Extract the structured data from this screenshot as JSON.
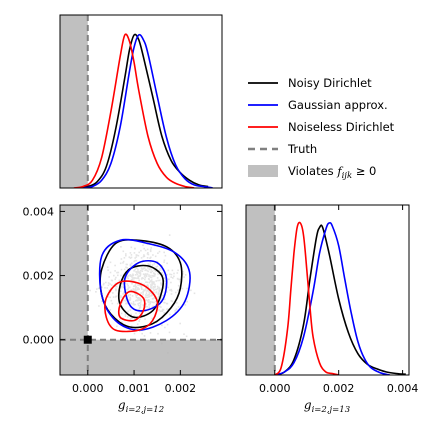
{
  "chart_data": [
    {
      "type": "line",
      "panel": "marginal-g12",
      "xlim": [
        -0.0006,
        0.0029
      ],
      "series": [
        {
          "name": "Noisy Dirichlet",
          "color": "#000000",
          "x": [
            -0.0002,
            0.0,
            0.0002,
            0.0004,
            0.0006,
            0.0008,
            0.0009,
            0.001,
            0.0011,
            0.0012,
            0.0014,
            0.0016,
            0.0018,
            0.002,
            0.0022,
            0.0024,
            0.0026
          ],
          "y": [
            0.0,
            0.01,
            0.04,
            0.14,
            0.38,
            0.72,
            0.9,
            1.0,
            0.97,
            0.86,
            0.6,
            0.34,
            0.18,
            0.1,
            0.05,
            0.02,
            0.01
          ]
        },
        {
          "name": "Gaussian approx.",
          "color": "#0000ff",
          "x": [
            -0.0001,
            0.0001,
            0.0003,
            0.0005,
            0.0007,
            0.0009,
            0.001,
            0.0011,
            0.0012,
            0.0013,
            0.0015,
            0.0017,
            0.0019,
            0.0021,
            0.0023,
            0.0025,
            0.0027
          ],
          "y": [
            0.0,
            0.01,
            0.05,
            0.16,
            0.4,
            0.76,
            0.92,
            1.0,
            0.97,
            0.88,
            0.6,
            0.33,
            0.15,
            0.06,
            0.02,
            0.01,
            0.0
          ]
        },
        {
          "name": "Noiseless Dirichlet",
          "color": "#ff0000",
          "x": [
            -0.0003,
            -0.0001,
            0.0001,
            0.0003,
            0.0005,
            0.0007,
            0.0008,
            0.0009,
            0.001,
            0.0011,
            0.0013,
            0.0015,
            0.0017,
            0.0019,
            0.0021,
            0.0023
          ],
          "y": [
            0.0,
            0.01,
            0.05,
            0.2,
            0.5,
            0.86,
            1.0,
            0.96,
            0.82,
            0.64,
            0.34,
            0.16,
            0.07,
            0.03,
            0.01,
            0.0
          ]
        }
      ]
    },
    {
      "type": "contour",
      "panel": "joint",
      "xlim": [
        -0.0006,
        0.0029
      ],
      "ylim": [
        -0.0011,
        0.0042
      ],
      "x_ticks": [
        "0.000",
        "0.001",
        "0.002"
      ],
      "y_ticks": [
        "0.000",
        "0.002",
        "0.004"
      ],
      "x_tick_values": [
        0.0,
        0.001,
        0.002
      ],
      "y_tick_values": [
        0.0,
        0.002,
        0.004
      ],
      "xlabel": "g_{i=2,j=12}",
      "truth": [
        0.0,
        0.0
      ],
      "contours": [
        {
          "series": "Noisy Dirichlet",
          "color": "#000000",
          "level": "outer",
          "points": [
            [
              0.0003,
              0.0022
            ],
            [
              0.0006,
              0.003
            ],
            [
              0.0011,
              0.0031
            ],
            [
              0.0017,
              0.0029
            ],
            [
              0.002,
              0.0024
            ],
            [
              0.002,
              0.0016
            ],
            [
              0.0018,
              0.001
            ],
            [
              0.0014,
              0.0005
            ],
            [
              0.0009,
              0.0004
            ],
            [
              0.0005,
              0.0008
            ],
            [
              0.0003,
              0.0014
            ]
          ]
        },
        {
          "series": "Noisy Dirichlet",
          "color": "#000000",
          "level": "inner",
          "points": [
            [
              0.0007,
              0.0017
            ],
            [
              0.0009,
              0.0022
            ],
            [
              0.0013,
              0.0023
            ],
            [
              0.0016,
              0.002
            ],
            [
              0.0016,
              0.0015
            ],
            [
              0.0014,
              0.0009
            ],
            [
              0.001,
              0.0007
            ],
            [
              0.0007,
              0.0011
            ]
          ]
        },
        {
          "series": "Gaussian approx.",
          "color": "#0000ff",
          "level": "outer",
          "points": [
            [
              0.0003,
              0.0026
            ],
            [
              0.0007,
              0.0031
            ],
            [
              0.0013,
              0.003
            ],
            [
              0.0019,
              0.0027
            ],
            [
              0.0022,
              0.0021
            ],
            [
              0.0021,
              0.0012
            ],
            [
              0.0017,
              0.0006
            ],
            [
              0.0011,
              0.0003
            ],
            [
              0.0006,
              0.0006
            ],
            [
              0.0003,
              0.0014
            ]
          ]
        },
        {
          "series": "Gaussian approx.",
          "color": "#0000ff",
          "level": "inner",
          "points": [
            [
              0.0008,
              0.0019
            ],
            [
              0.0011,
              0.0024
            ],
            [
              0.0015,
              0.0024
            ],
            [
              0.0017,
              0.0019
            ],
            [
              0.0016,
              0.0012
            ],
            [
              0.0012,
              0.0009
            ],
            [
              0.0009,
              0.0011
            ]
          ]
        },
        {
          "series": "Noiseless Dirichlet",
          "color": "#ff0000",
          "level": "outer",
          "points": [
            [
              0.0004,
              0.0013
            ],
            [
              0.0007,
              0.0018
            ],
            [
              0.0012,
              0.0017
            ],
            [
              0.0015,
              0.0012
            ],
            [
              0.0014,
              0.0006
            ],
            [
              0.0011,
              0.0003
            ],
            [
              0.0006,
              0.0003
            ],
            [
              0.0004,
              0.0007
            ]
          ]
        },
        {
          "series": "Noiseless Dirichlet",
          "color": "#ff0000",
          "level": "inner",
          "points": [
            [
              0.0007,
              0.0011
            ],
            [
              0.0009,
              0.0015
            ],
            [
              0.0012,
              0.0013
            ],
            [
              0.0012,
              0.0009
            ],
            [
              0.001,
              0.0006
            ],
            [
              0.0007,
              0.0007
            ]
          ]
        }
      ]
    },
    {
      "type": "line",
      "panel": "marginal-g13",
      "xlim": [
        -0.0009,
        0.0042
      ],
      "x_ticks": [
        "0.000",
        "0.002",
        "0.004"
      ],
      "x_tick_values": [
        0.0,
        0.002,
        0.004
      ],
      "xlabel": "g_{i=2,j=13}",
      "series": [
        {
          "name": "Noisy Dirichlet",
          "color": "#000000",
          "x": [
            0.0,
            0.0003,
            0.0006,
            0.0009,
            0.0011,
            0.0013,
            0.0014,
            0.0015,
            0.0017,
            0.002,
            0.0023,
            0.0026,
            0.0029,
            0.0032,
            0.0035,
            0.0038,
            0.0041
          ],
          "y": [
            0.0,
            0.02,
            0.1,
            0.33,
            0.63,
            0.9,
            0.97,
            0.97,
            0.8,
            0.5,
            0.28,
            0.14,
            0.07,
            0.04,
            0.02,
            0.01,
            0.005
          ]
        },
        {
          "name": "Gaussian approx.",
          "color": "#0000ff",
          "x": [
            0.0,
            0.0003,
            0.0006,
            0.0009,
            0.0012,
            0.0014,
            0.0016,
            0.0017,
            0.0018,
            0.002,
            0.0022,
            0.0024,
            0.0026,
            0.0028,
            0.003,
            0.0033,
            0.0036
          ],
          "y": [
            0.0,
            0.02,
            0.08,
            0.25,
            0.55,
            0.8,
            0.96,
            1.0,
            0.98,
            0.85,
            0.62,
            0.4,
            0.22,
            0.11,
            0.05,
            0.015,
            0.0
          ]
        },
        {
          "name": "Noiseless Dirichlet",
          "color": "#ff0000",
          "x": [
            0.0,
            0.0002,
            0.0004,
            0.0005,
            0.0006,
            0.0007,
            0.0008,
            0.0009,
            0.001,
            0.0011,
            0.0012,
            0.0014,
            0.0016,
            0.0018,
            0.002
          ],
          "y": [
            0.0,
            0.05,
            0.3,
            0.55,
            0.8,
            0.97,
            1.0,
            0.92,
            0.7,
            0.45,
            0.25,
            0.08,
            0.02,
            0.01,
            0.0
          ]
        }
      ]
    }
  ],
  "legend": {
    "placement": "top-right",
    "items": [
      {
        "label": "Noisy Dirichlet",
        "kind": "line",
        "color": "#000000"
      },
      {
        "label": "Gaussian approx.",
        "kind": "line",
        "color": "#0000ff"
      },
      {
        "label": "Noiseless Dirichlet",
        "kind": "line",
        "color": "#ff0000"
      },
      {
        "label": "Truth",
        "kind": "dashed",
        "color": "#808080"
      },
      {
        "label": "Violates f_{ijk} ≥ 0",
        "kind": "patch",
        "color": "#c0c0c0"
      }
    ]
  },
  "colors": {
    "violation": "#c0c0c0",
    "truth": "#808080",
    "scatter": "#b4b4b4"
  }
}
